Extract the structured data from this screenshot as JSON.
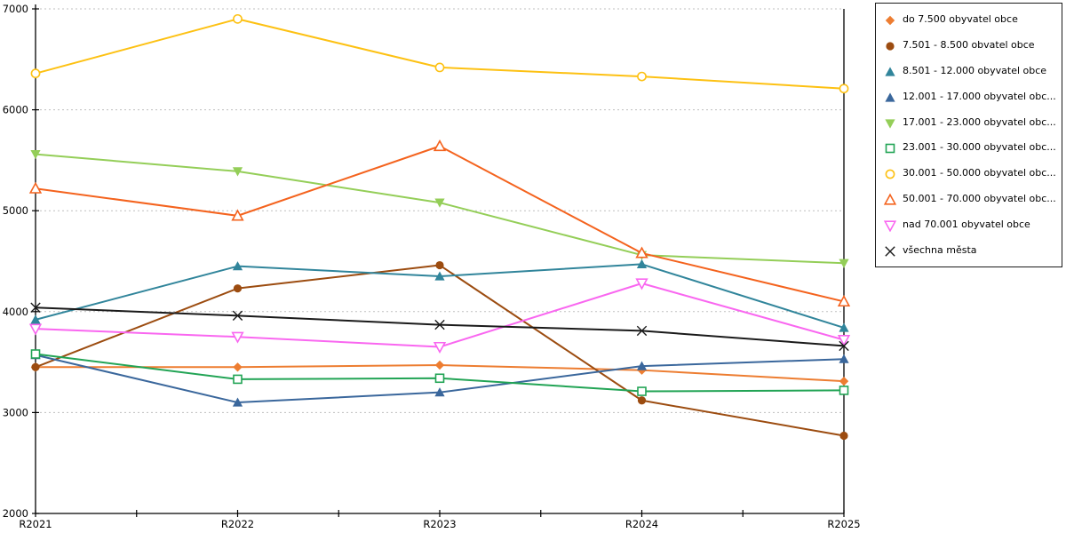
{
  "chart_data": {
    "type": "line",
    "title": "",
    "xlabel": "",
    "ylabel": "",
    "categories": [
      "R2021",
      "R2022",
      "R2023",
      "R2024",
      "R2025"
    ],
    "ylim": [
      2000,
      7000
    ],
    "ytick_step": 1000,
    "grid": "horizontal-dotted",
    "grid_color": "#bfbfbf",
    "axis_color": "#000000",
    "x_minor_ticks_between_categories": true,
    "legend_position": "top-right",
    "series": [
      {
        "name": "do 7.500 obyvatel obce",
        "marker": "diamond-filled",
        "color": "#ED7D31",
        "values": [
          3450,
          3450,
          3470,
          3420,
          3310
        ]
      },
      {
        "name": "7.501 - 8.500 obvatel obce",
        "marker": "circle-filled",
        "color": "#9C4C10",
        "values": [
          3450,
          4230,
          4460,
          3120,
          2770
        ]
      },
      {
        "name": "8.501 - 12.000 obyvatel obce",
        "marker": "triangle-up-filled",
        "color": "#31859B",
        "values": [
          3920,
          4450,
          4350,
          4470,
          3840
        ]
      },
      {
        "name": "12.001 - 17.000 obyvatel obc...",
        "marker": "triangle-up-filled",
        "color": "#3A679C",
        "values": [
          3570,
          3100,
          3200,
          3460,
          3530
        ]
      },
      {
        "name": "17.001 - 23.000 obyvatel obc...",
        "marker": "triangle-down-filled",
        "color": "#94CE58",
        "values": [
          5560,
          5390,
          5080,
          4560,
          4480
        ]
      },
      {
        "name": "23.001 - 30.000 obyvatel obc...",
        "marker": "square-open",
        "color": "#22A455",
        "values": [
          3580,
          3330,
          3340,
          3210,
          3220
        ]
      },
      {
        "name": "30.001 - 50.000 obyvatel obc...",
        "marker": "circle-open",
        "color": "#FDC113",
        "values": [
          6360,
          6900,
          6420,
          6330,
          6210
        ]
      },
      {
        "name": "50.001 - 70.000 obyvatel obc...",
        "marker": "triangle-up-open",
        "color": "#F4631E",
        "values": [
          5220,
          4950,
          5640,
          4580,
          4100
        ]
      },
      {
        "name": "nad 70.001 obyvatel obce",
        "marker": "triangle-down-open",
        "color": "#F967F0",
        "values": [
          3830,
          3750,
          3650,
          4280,
          3720
        ]
      },
      {
        "name": "všechna města",
        "marker": "x-cross",
        "color": "#1a1a1a",
        "values": [
          4040,
          3960,
          3870,
          3810,
          3660
        ]
      }
    ]
  }
}
